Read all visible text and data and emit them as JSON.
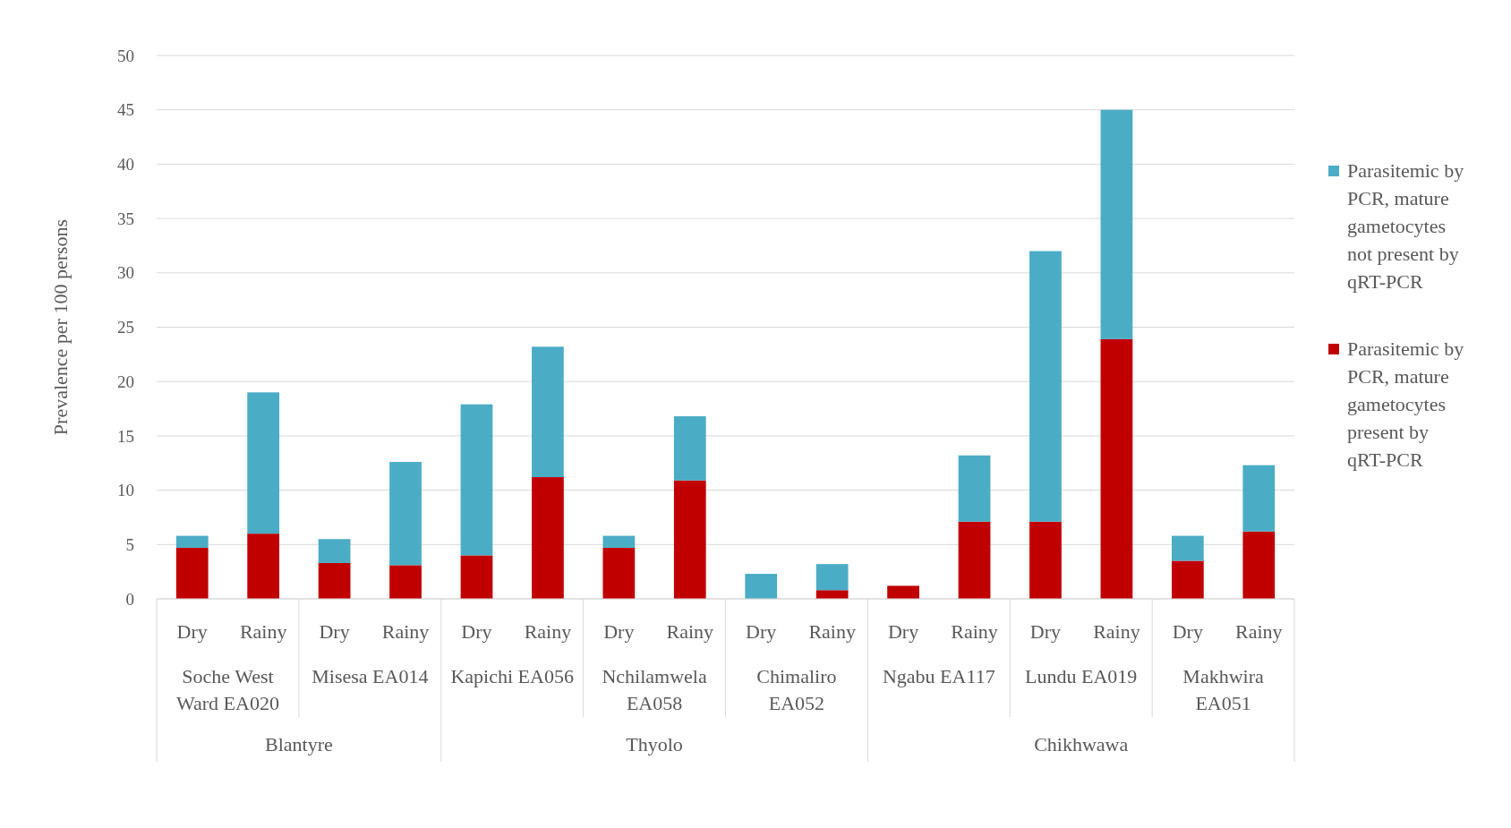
{
  "chart_data": {
    "type": "bar",
    "stacked": true,
    "ylabel": "Prevalence per 100 persons",
    "categories": [
      "Dry",
      "Rainy",
      "Dry",
      "Rainy",
      "Dry",
      "Rainy",
      "Dry",
      "Rainy",
      "Dry",
      "Rainy",
      "Dry",
      "Rainy",
      "Dry",
      "Rainy",
      "Dry",
      "Rainy"
    ],
    "series": [
      {
        "name": "Parasitemic by PCR, mature gametocytes present by qRT-PCR",
        "color": "#c00000",
        "values": [
          4.7,
          6.0,
          3.3,
          3.1,
          4.0,
          11.2,
          4.7,
          10.9,
          0,
          0.8,
          1.2,
          7.1,
          7.1,
          23.9,
          3.5,
          6.2
        ]
      },
      {
        "name": "Parasitemic by PCR, mature gametocytes not present by qRT-PCR",
        "color": "#4bacc6",
        "values": [
          1.1,
          13.0,
          2.2,
          9.5,
          13.9,
          12.0,
          1.1,
          5.9,
          2.3,
          2.4,
          0,
          6.1,
          24.9,
          21.1,
          2.3,
          6.1
        ]
      }
    ],
    "annotations": [
      "Soche West Ward EA020",
      "Misesa EA014",
      "Kapichi EA056",
      "Nchilamwela EA058",
      "Chimaliro EA052",
      "Ngabu EA117",
      "Lundu EA019",
      "Makhwira EA051",
      "Blantyre",
      "Thyolo",
      "Chikhwawa"
    ],
    "ylim": [
      0,
      50
    ],
    "yticks": [
      0,
      5,
      10,
      15,
      20,
      25,
      30,
      35,
      40,
      45,
      50
    ],
    "grid": "y",
    "legend": "right"
  }
}
